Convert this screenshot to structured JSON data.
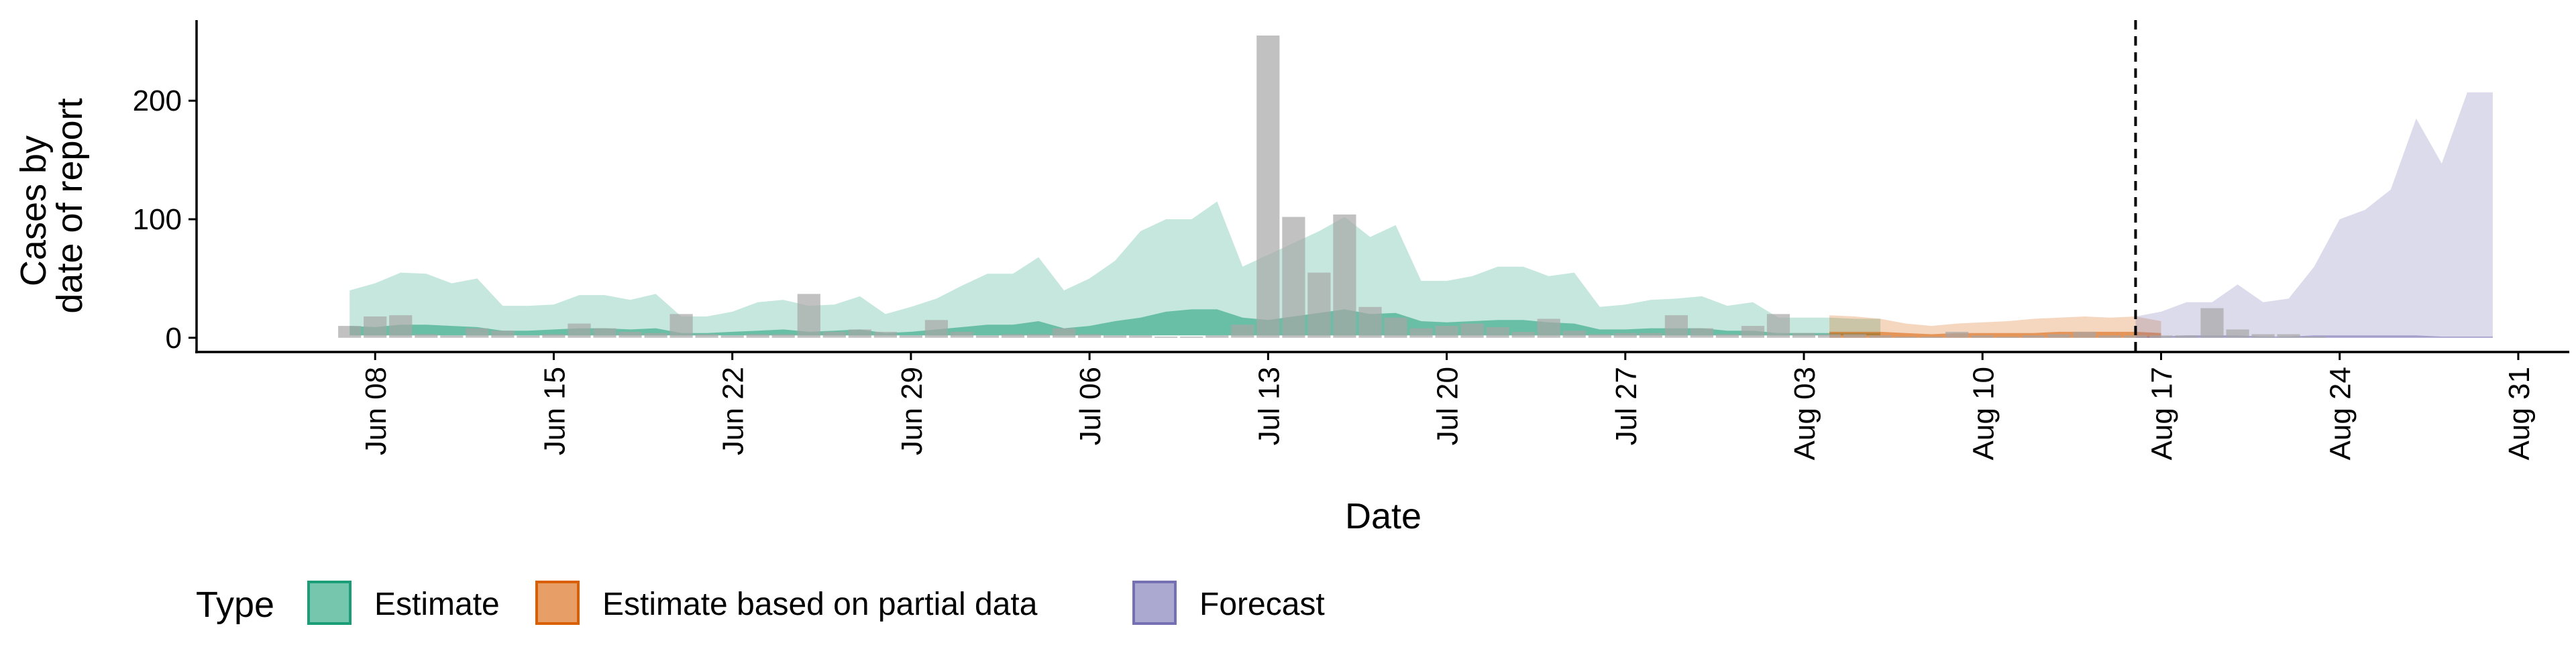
{
  "chart_data": {
    "type": "area",
    "xlabel": "Date",
    "ylabel": [
      "Cases by",
      "date of report"
    ],
    "ylim": [
      -12,
      268
    ],
    "yticks": [
      0,
      100,
      200
    ],
    "xlim": [
      "2020-06-01",
      "2020-09-02"
    ],
    "xticks": [
      {
        "date": "2020-06-08",
        "label": "Jun 08"
      },
      {
        "date": "2020-06-15",
        "label": "Jun 15"
      },
      {
        "date": "2020-06-22",
        "label": "Jun 22"
      },
      {
        "date": "2020-06-29",
        "label": "Jun 29"
      },
      {
        "date": "2020-07-06",
        "label": "Jul 06"
      },
      {
        "date": "2020-07-13",
        "label": "Jul 13"
      },
      {
        "date": "2020-07-20",
        "label": "Jul 20"
      },
      {
        "date": "2020-07-27",
        "label": "Jul 27"
      },
      {
        "date": "2020-08-03",
        "label": "Aug 03"
      },
      {
        "date": "2020-08-10",
        "label": "Aug 10"
      },
      {
        "date": "2020-08-17",
        "label": "Aug 17"
      },
      {
        "date": "2020-08-24",
        "label": "Aug 24"
      },
      {
        "date": "2020-08-31",
        "label": "Aug 31"
      }
    ],
    "forecast_date": "2020-08-16",
    "grid": false,
    "legend": {
      "title": "Type",
      "position": "bottom",
      "items": [
        {
          "label": "Estimate",
          "color": "#1b9e77"
        },
        {
          "label": "Estimate based on partial data",
          "color": "#d95f02"
        },
        {
          "label": "Forecast",
          "color": "#7570b3"
        }
      ]
    },
    "bar_color": "#a6a6a6",
    "reported_cases": {
      "start": "2020-06-07",
      "values": [
        10,
        18,
        19,
        3,
        2,
        8,
        6,
        2,
        3,
        12,
        8,
        5,
        4,
        20,
        3,
        2,
        3,
        3,
        37,
        5,
        7,
        5,
        2,
        15,
        5,
        2,
        3,
        3,
        8,
        3,
        2,
        2,
        1,
        1,
        2,
        11,
        255,
        102,
        55,
        104,
        26,
        17,
        8,
        10,
        12,
        9,
        5,
        16,
        6,
        3,
        4,
        4,
        19,
        8,
        3,
        10,
        20,
        4,
        3,
        3,
        2,
        1,
        1,
        5,
        2,
        1,
        2,
        3,
        5,
        2,
        2,
        2,
        2,
        25,
        7,
        3,
        3,
        1
      ]
    },
    "series": [
      {
        "name": "Estimate",
        "color": "#1b9e77",
        "start": "2020-06-07",
        "outer_lower": [
          2,
          2,
          2,
          2,
          2,
          2,
          2,
          2,
          2,
          2,
          2,
          2,
          2,
          2,
          2,
          2,
          2,
          2,
          2,
          2,
          2,
          2,
          2,
          2,
          2,
          2,
          2,
          2,
          2,
          2,
          2,
          2,
          2,
          2,
          2,
          2,
          2,
          2,
          2,
          2,
          2,
          2,
          2,
          2,
          2,
          2,
          2,
          2,
          2,
          2,
          2,
          2,
          2,
          2,
          2,
          2,
          2,
          2,
          2,
          2,
          2
        ],
        "outer_upper": [
          40,
          46,
          55,
          54,
          46,
          50,
          27,
          27,
          28,
          36,
          36,
          32,
          37,
          18,
          18,
          22,
          30,
          32,
          27,
          28,
          35,
          20,
          26,
          33,
          44,
          54,
          54,
          68,
          40,
          50,
          65,
          90,
          100,
          100,
          115,
          60,
          70,
          80,
          90,
          102,
          85,
          95,
          48,
          48,
          52,
          60,
          60,
          52,
          55,
          26,
          28,
          32,
          33,
          35,
          27,
          30,
          17,
          17,
          17,
          16,
          16
        ],
        "inner_lower": [
          2,
          2,
          2,
          2,
          2,
          2,
          2,
          2,
          2,
          2,
          2,
          2,
          2,
          2,
          2,
          2,
          2,
          2,
          2,
          2,
          2,
          2,
          2,
          2,
          2,
          2,
          2,
          2,
          2,
          2,
          2,
          2,
          2,
          2,
          2,
          2,
          2,
          2,
          2,
          2,
          2,
          2,
          2,
          2,
          2,
          2,
          2,
          2,
          2,
          2,
          2,
          2,
          2,
          2,
          2,
          2,
          2,
          2,
          2,
          2,
          2
        ],
        "inner_upper": [
          10,
          9,
          11,
          11,
          10,
          9,
          6,
          6,
          7,
          8,
          8,
          7,
          8,
          4,
          4,
          5,
          6,
          7,
          5,
          6,
          7,
          4,
          5,
          7,
          9,
          11,
          11,
          14,
          8,
          10,
          14,
          17,
          22,
          24,
          24,
          17,
          15,
          18,
          21,
          24,
          20,
          21,
          14,
          13,
          14,
          15,
          15,
          13,
          12,
          7,
          7,
          8,
          8,
          8,
          6,
          6,
          4,
          4,
          4,
          4,
          4
        ]
      },
      {
        "name": "Estimate based on partial data",
        "color": "#d95f02",
        "start": "2020-08-04",
        "outer_lower": [
          0,
          0,
          0,
          0,
          0,
          0,
          0,
          0,
          0,
          0,
          0,
          0,
          0,
          0
        ],
        "outer_upper": [
          19,
          18,
          16,
          12,
          10,
          12,
          13,
          14,
          16,
          17,
          18,
          17,
          18,
          14
        ],
        "inner_lower": [
          0,
          0,
          0,
          0,
          0,
          0,
          0,
          0,
          0,
          0,
          0,
          0,
          0,
          0
        ],
        "inner_upper": [
          5,
          5,
          5,
          4,
          3,
          4,
          4,
          4,
          4,
          5,
          5,
          5,
          5,
          4
        ]
      },
      {
        "name": "Forecast",
        "color": "#7570b3",
        "start": "2020-08-16",
        "outer_lower": [
          0,
          0,
          0,
          0,
          0,
          0,
          0,
          0,
          0,
          0,
          0,
          0,
          0,
          0,
          0
        ],
        "outer_upper": [
          18,
          22,
          30,
          30,
          45,
          30,
          33,
          60,
          100,
          108,
          125,
          185,
          147,
          207,
          207
        ],
        "inner_lower": [
          0,
          0,
          0,
          0,
          0,
          0,
          0,
          0,
          0,
          0,
          0,
          0,
          0,
          0,
          0
        ],
        "inner_upper": [
          1,
          1,
          2,
          2,
          2,
          1,
          1,
          2,
          2,
          2,
          2,
          2,
          1,
          1,
          1
        ]
      }
    ]
  }
}
